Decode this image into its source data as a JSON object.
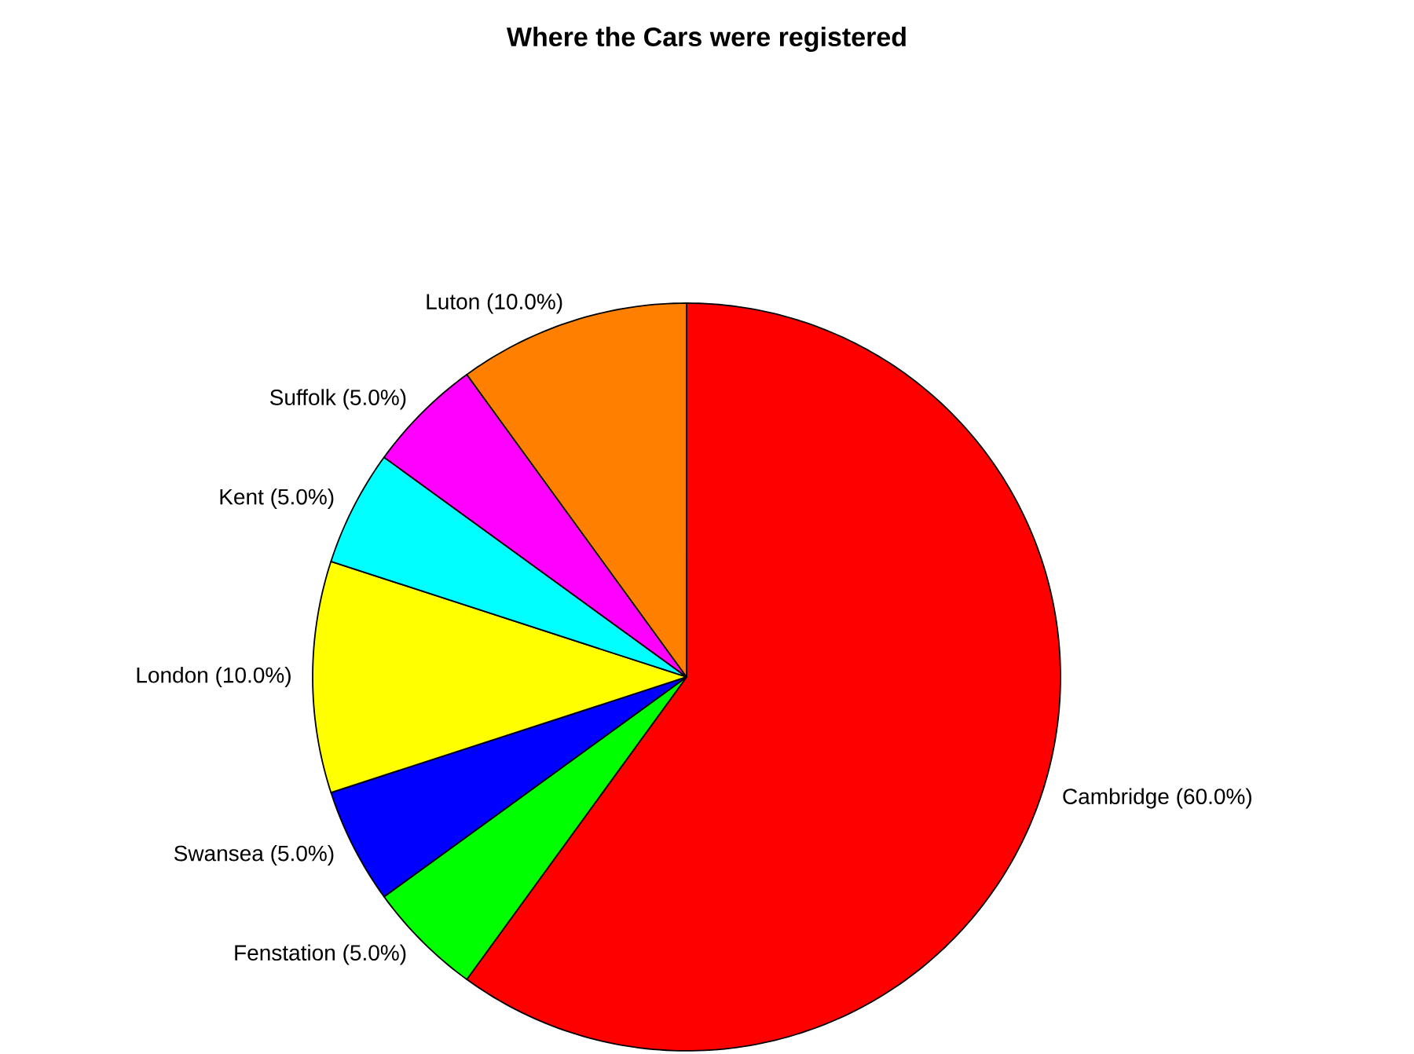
{
  "chart_data": {
    "type": "pie",
    "title": "Where the Cars were registered",
    "categories": [
      "Cambridge",
      "Fenstation",
      "Swansea",
      "London",
      "Kent",
      "Suffolk",
      "Luton"
    ],
    "values": [
      60,
      5,
      5,
      10,
      5,
      5,
      10
    ],
    "value_labels": [
      "(60.0%)",
      "(5.0%)",
      "(5.0%)",
      "(10.0%)",
      "(5.0%)",
      "(5.0%)",
      "(10.0%)"
    ],
    "colors": [
      "#ff0000",
      "#00ff00",
      "#0000ff",
      "#ffff00",
      "#00ffff",
      "#ff00ff",
      "#ff8000"
    ]
  }
}
